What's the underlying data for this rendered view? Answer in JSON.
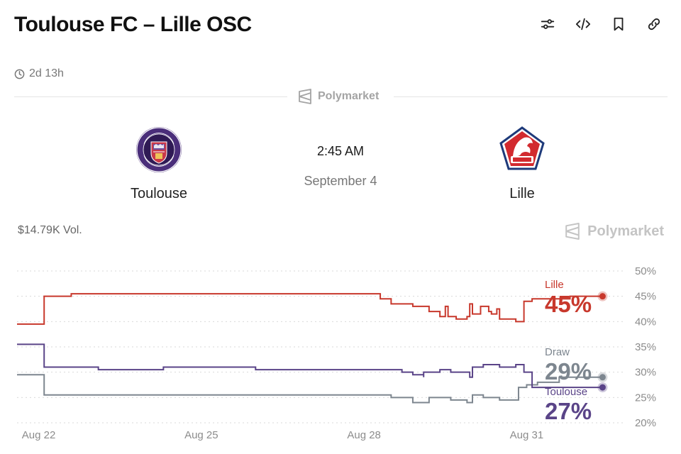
{
  "header": {
    "title": "Toulouse FC – Lille OSC",
    "toolbar": [
      {
        "name": "sliders-icon"
      },
      {
        "name": "embed-code-icon"
      },
      {
        "name": "bookmark-icon"
      },
      {
        "name": "link-icon"
      }
    ]
  },
  "match": {
    "time_remaining": "2d 13h",
    "source": "Polymarket",
    "home": {
      "name": "Toulouse",
      "color": "#5b3b8c"
    },
    "away": {
      "name": "Lille",
      "color": "#c62c2c"
    },
    "kickoff_time": "2:45 AM",
    "kickoff_date": "September 4"
  },
  "market": {
    "volume": "$14.79K Vol.",
    "watermark": "Polymarket"
  },
  "colors": {
    "lille": "#c8382c",
    "draw": "#7d868f",
    "toulouse": "#5a4488",
    "grid": "#d9d9d9",
    "axis_text": "#8c8c8c"
  },
  "chart_data": {
    "type": "line",
    "title": "",
    "xlabel": "",
    "ylabel": "",
    "ylim": [
      20,
      50
    ],
    "y_ticks": [
      50,
      45,
      40,
      35,
      30,
      25,
      20
    ],
    "y_tick_labels": [
      "50%",
      "45%",
      "40%",
      "35%",
      "30%",
      "25%",
      "20%"
    ],
    "x_tick_labels": [
      "Aug 22",
      "Aug 25",
      "Aug 28",
      "Aug 31"
    ],
    "x_tick_positions": [
      22,
      25,
      28,
      31
    ],
    "xlim": [
      21.6,
      32.8
    ],
    "grid": true,
    "legend": "right-end-labels",
    "series": [
      {
        "name": "Lille",
        "key": "lille",
        "current_label": "45%",
        "x": [
          21.6,
          22.1,
          22.1,
          22.6,
          22.6,
          26.0,
          28.1,
          28.3,
          28.5,
          28.9,
          29.2,
          29.4,
          29.5,
          29.55,
          29.7,
          29.9,
          29.95,
          30.0,
          30.15,
          30.3,
          30.35,
          30.45,
          30.5,
          30.8,
          30.95,
          30.95,
          31.1,
          31.4,
          31.8,
          32.4
        ],
        "y": [
          39.5,
          39.5,
          45.0,
          45.0,
          45.5,
          45.5,
          45.5,
          44.5,
          43.5,
          43.0,
          42.0,
          41.0,
          43.0,
          41.0,
          40.5,
          41.0,
          43.5,
          41.5,
          43.0,
          42.0,
          41.5,
          42.5,
          40.5,
          40.0,
          40.0,
          44.0,
          44.5,
          44.5,
          45.0,
          45.0
        ]
      },
      {
        "name": "Draw",
        "key": "draw",
        "current_label": "29%",
        "x": [
          21.6,
          22.0,
          22.1,
          22.1,
          26.0,
          28.1,
          28.5,
          28.9,
          29.1,
          29.2,
          29.6,
          29.9,
          30.0,
          30.2,
          30.5,
          30.8,
          30.85,
          31.0,
          31.2,
          31.6,
          32.4
        ],
        "y": [
          29.5,
          29.5,
          29.5,
          25.5,
          25.5,
          25.5,
          25.0,
          24.0,
          24.0,
          25.0,
          24.5,
          24.0,
          25.5,
          25.0,
          24.5,
          24.5,
          27.0,
          27.5,
          28.0,
          29.0,
          29.0
        ]
      },
      {
        "name": "Toulouse",
        "key": "toulouse",
        "current_label": "27%",
        "x": [
          21.6,
          22.0,
          22.1,
          22.1,
          23.1,
          23.1,
          24.3,
          24.3,
          26.0,
          28.1,
          28.7,
          28.9,
          29.1,
          29.1,
          29.4,
          29.6,
          29.95,
          30.0,
          30.2,
          30.5,
          30.8,
          30.95,
          31.1,
          31.1,
          32.4
        ],
        "y": [
          35.5,
          35.5,
          35.0,
          31.0,
          31.0,
          30.5,
          30.5,
          31.0,
          30.5,
          30.5,
          30.0,
          29.5,
          29.0,
          30.0,
          30.5,
          30.0,
          29.0,
          31.0,
          31.5,
          31.0,
          31.5,
          30.0,
          27.0,
          27.0,
          27.0
        ]
      }
    ]
  }
}
